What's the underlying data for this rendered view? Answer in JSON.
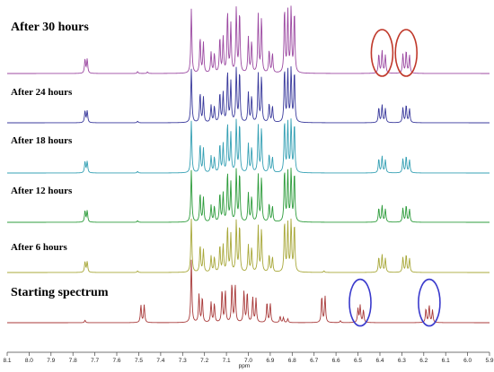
{
  "chart_data": {
    "type": "line",
    "title": "",
    "xlabel": "ppm",
    "ylabel": "",
    "xlim": [
      8.1,
      5.9
    ],
    "x_reversed": true,
    "x_ticks": [
      "8.1",
      "8.0",
      "7.9",
      "7.8",
      "7.7",
      "7.6",
      "7.5",
      "7.4",
      "7.3",
      "7.2",
      "7.1",
      "7.0",
      "6.9",
      "6.8",
      "6.7",
      "6.6",
      "6.5",
      "6.4",
      "6.3",
      "6.2",
      "6.1",
      "6.0",
      "5.9"
    ],
    "grid": false,
    "legend": "none",
    "series": [
      {
        "name": "After 30 hours",
        "color": "#9c4aa2",
        "peaks": [
          [
            7.745,
            0.22
          ],
          [
            7.735,
            0.22
          ],
          [
            7.505,
            0.03
          ],
          [
            7.46,
            0.025
          ],
          [
            7.26,
            1.0
          ],
          [
            7.22,
            0.55
          ],
          [
            7.205,
            0.47
          ],
          [
            7.17,
            0.32
          ],
          [
            7.155,
            0.3
          ],
          [
            7.13,
            0.55
          ],
          [
            7.115,
            0.55
          ],
          [
            7.095,
            0.95
          ],
          [
            7.08,
            0.75
          ],
          [
            7.055,
            1.0
          ],
          [
            7.04,
            0.95
          ],
          [
            7.0,
            0.55
          ],
          [
            6.985,
            0.48
          ],
          [
            6.955,
            0.9
          ],
          [
            6.94,
            0.85
          ],
          [
            6.905,
            0.35
          ],
          [
            6.89,
            0.3
          ],
          [
            6.835,
            1.0
          ],
          [
            6.82,
            0.95
          ],
          [
            6.805,
            1.0
          ],
          [
            6.79,
            0.95
          ],
          [
            6.405,
            0.3
          ],
          [
            6.39,
            0.35
          ],
          [
            6.375,
            0.28
          ],
          [
            6.295,
            0.3
          ],
          [
            6.28,
            0.35
          ],
          [
            6.265,
            0.28
          ]
        ]
      },
      {
        "name": "After 24 hours",
        "color": "#3a3a9c",
        "peaks": [
          [
            7.745,
            0.22
          ],
          [
            7.735,
            0.22
          ],
          [
            7.505,
            0.03
          ],
          [
            7.26,
            1.0
          ],
          [
            7.22,
            0.55
          ],
          [
            7.205,
            0.47
          ],
          [
            7.17,
            0.32
          ],
          [
            7.155,
            0.3
          ],
          [
            7.13,
            0.55
          ],
          [
            7.115,
            0.55
          ],
          [
            7.095,
            0.95
          ],
          [
            7.08,
            0.75
          ],
          [
            7.055,
            1.0
          ],
          [
            7.04,
            0.95
          ],
          [
            7.0,
            0.55
          ],
          [
            6.985,
            0.48
          ],
          [
            6.955,
            0.9
          ],
          [
            6.94,
            0.85
          ],
          [
            6.905,
            0.35
          ],
          [
            6.89,
            0.3
          ],
          [
            6.835,
            1.0
          ],
          [
            6.82,
            0.95
          ],
          [
            6.805,
            1.0
          ],
          [
            6.79,
            0.95
          ],
          [
            6.405,
            0.28
          ],
          [
            6.39,
            0.33
          ],
          [
            6.375,
            0.26
          ],
          [
            6.295,
            0.28
          ],
          [
            6.28,
            0.33
          ],
          [
            6.265,
            0.26
          ]
        ]
      },
      {
        "name": "After 18 hours",
        "color": "#35a0b4",
        "peaks": [
          [
            7.745,
            0.22
          ],
          [
            7.735,
            0.22
          ],
          [
            7.505,
            0.03
          ],
          [
            7.26,
            1.0
          ],
          [
            7.22,
            0.55
          ],
          [
            7.205,
            0.47
          ],
          [
            7.17,
            0.32
          ],
          [
            7.155,
            0.3
          ],
          [
            7.13,
            0.55
          ],
          [
            7.115,
            0.55
          ],
          [
            7.095,
            0.95
          ],
          [
            7.08,
            0.75
          ],
          [
            7.055,
            1.0
          ],
          [
            7.04,
            0.95
          ],
          [
            7.0,
            0.55
          ],
          [
            6.985,
            0.48
          ],
          [
            6.955,
            0.9
          ],
          [
            6.94,
            0.85
          ],
          [
            6.905,
            0.35
          ],
          [
            6.89,
            0.3
          ],
          [
            6.835,
            1.0
          ],
          [
            6.82,
            0.95
          ],
          [
            6.805,
            1.0
          ],
          [
            6.79,
            0.95
          ],
          [
            6.405,
            0.27
          ],
          [
            6.39,
            0.32
          ],
          [
            6.375,
            0.25
          ],
          [
            6.295,
            0.27
          ],
          [
            6.28,
            0.32
          ],
          [
            6.265,
            0.25
          ]
        ]
      },
      {
        "name": "After 12 hours",
        "color": "#2e9c3c",
        "peaks": [
          [
            7.745,
            0.22
          ],
          [
            7.735,
            0.22
          ],
          [
            7.505,
            0.03
          ],
          [
            7.26,
            1.0
          ],
          [
            7.22,
            0.55
          ],
          [
            7.205,
            0.47
          ],
          [
            7.17,
            0.32
          ],
          [
            7.155,
            0.3
          ],
          [
            7.13,
            0.55
          ],
          [
            7.115,
            0.55
          ],
          [
            7.095,
            0.95
          ],
          [
            7.08,
            0.75
          ],
          [
            7.055,
            1.0
          ],
          [
            7.04,
            0.95
          ],
          [
            7.0,
            0.55
          ],
          [
            6.985,
            0.48
          ],
          [
            6.955,
            0.9
          ],
          [
            6.94,
            0.85
          ],
          [
            6.905,
            0.35
          ],
          [
            6.89,
            0.3
          ],
          [
            6.835,
            1.0
          ],
          [
            6.82,
            0.95
          ],
          [
            6.805,
            1.0
          ],
          [
            6.79,
            0.95
          ],
          [
            6.405,
            0.27
          ],
          [
            6.39,
            0.32
          ],
          [
            6.375,
            0.25
          ],
          [
            6.295,
            0.27
          ],
          [
            6.28,
            0.32
          ],
          [
            6.265,
            0.25
          ]
        ]
      },
      {
        "name": "After 6 hours",
        "color": "#a8a83a",
        "peaks": [
          [
            7.745,
            0.2
          ],
          [
            7.735,
            0.2
          ],
          [
            7.505,
            0.03
          ],
          [
            7.26,
            1.0
          ],
          [
            7.22,
            0.5
          ],
          [
            7.205,
            0.42
          ],
          [
            7.17,
            0.3
          ],
          [
            7.155,
            0.28
          ],
          [
            7.13,
            0.5
          ],
          [
            7.115,
            0.5
          ],
          [
            7.095,
            0.85
          ],
          [
            7.08,
            0.7
          ],
          [
            7.055,
            0.95
          ],
          [
            7.04,
            0.88
          ],
          [
            7.0,
            0.5
          ],
          [
            6.985,
            0.45
          ],
          [
            6.955,
            0.85
          ],
          [
            6.94,
            0.8
          ],
          [
            6.905,
            0.32
          ],
          [
            6.89,
            0.28
          ],
          [
            6.835,
            0.95
          ],
          [
            6.82,
            0.9
          ],
          [
            6.805,
            0.95
          ],
          [
            6.79,
            0.9
          ],
          [
            6.655,
            0.03
          ],
          [
            6.405,
            0.28
          ],
          [
            6.39,
            0.33
          ],
          [
            6.375,
            0.26
          ],
          [
            6.295,
            0.28
          ],
          [
            6.28,
            0.33
          ],
          [
            6.265,
            0.26
          ]
        ]
      },
      {
        "name": "Starting spectrum",
        "color": "#a83a3a",
        "peaks": [
          [
            7.745,
            0.04
          ],
          [
            7.49,
            0.28
          ],
          [
            7.475,
            0.28
          ],
          [
            7.26,
            1.0
          ],
          [
            7.225,
            0.45
          ],
          [
            7.21,
            0.4
          ],
          [
            7.17,
            0.32
          ],
          [
            7.155,
            0.3
          ],
          [
            7.12,
            0.52
          ],
          [
            7.105,
            0.5
          ],
          [
            7.075,
            0.62
          ],
          [
            7.06,
            0.6
          ],
          [
            7.02,
            0.5
          ],
          [
            7.005,
            0.48
          ],
          [
            6.98,
            0.4
          ],
          [
            6.965,
            0.38
          ],
          [
            6.915,
            0.32
          ],
          [
            6.9,
            0.3
          ],
          [
            6.855,
            0.1
          ],
          [
            6.84,
            0.08
          ],
          [
            6.82,
            0.06
          ],
          [
            6.665,
            0.42
          ],
          [
            6.65,
            0.42
          ],
          [
            6.58,
            0.03
          ],
          [
            6.5,
            0.22
          ],
          [
            6.49,
            0.27
          ],
          [
            6.475,
            0.2
          ],
          [
            6.19,
            0.22
          ],
          [
            6.175,
            0.27
          ],
          [
            6.16,
            0.2
          ]
        ]
      }
    ],
    "annotations": [
      {
        "shape": "ellipse",
        "color": "#c0392b",
        "trace": "After 30 hours",
        "center_ppm": 6.39,
        "label": ""
      },
      {
        "shape": "ellipse",
        "color": "#c0392b",
        "trace": "After 30 hours",
        "center_ppm": 6.28,
        "label": ""
      },
      {
        "shape": "ellipse",
        "color": "#3a3acc",
        "trace": "Starting spectrum",
        "center_ppm": 6.49,
        "label": ""
      },
      {
        "shape": "ellipse",
        "color": "#3a3acc",
        "trace": "Starting spectrum",
        "center_ppm": 6.175,
        "label": ""
      }
    ]
  }
}
